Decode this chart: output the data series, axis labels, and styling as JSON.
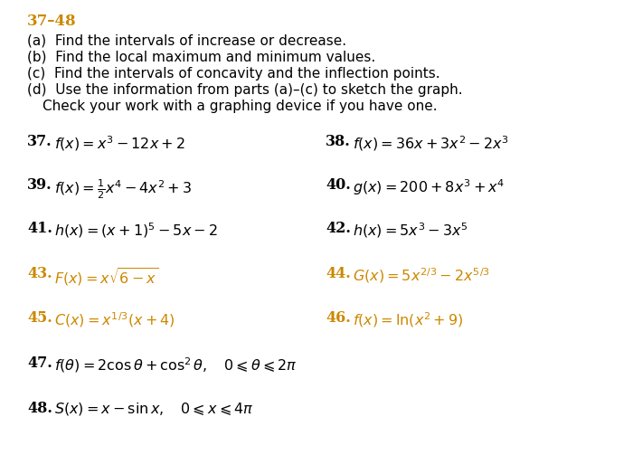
{
  "background_color": "#ffffff",
  "header_color": "#cc8800",
  "orange_color": "#cc8800",
  "black_color": "#000000",
  "fig_width": 7.0,
  "fig_height": 5.24,
  "dpi": 100
}
